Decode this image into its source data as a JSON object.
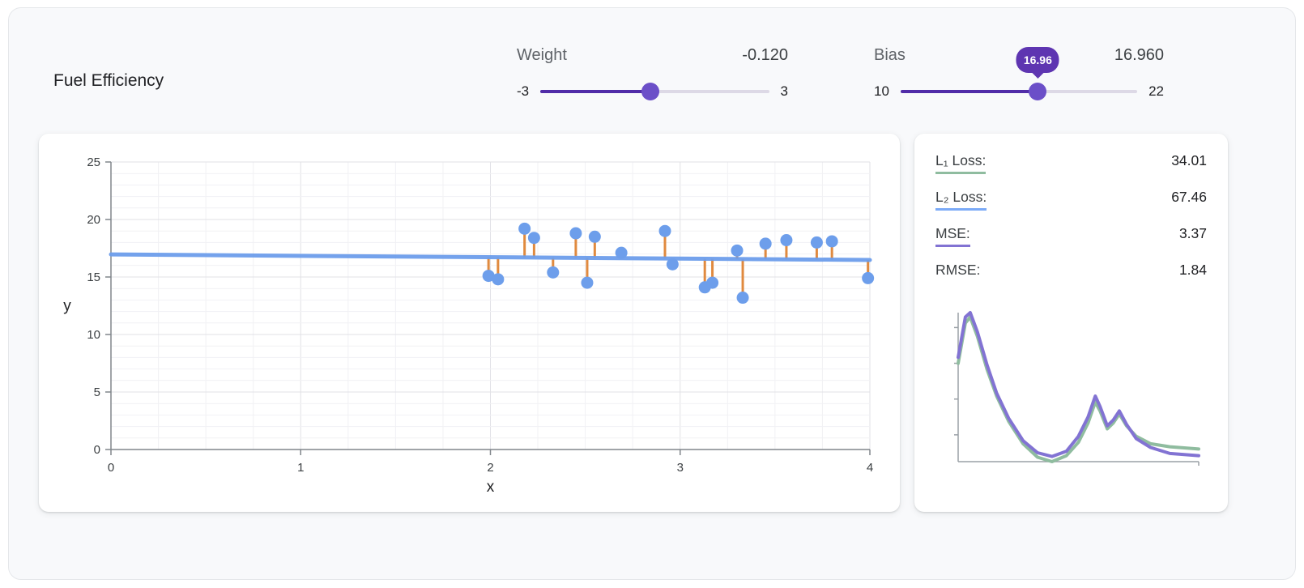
{
  "page": {
    "title": "Fuel Efficiency"
  },
  "controls": {
    "weight": {
      "label": "Weight",
      "value": -0.12,
      "value_display": "-0.120",
      "min": -3,
      "max": 3
    },
    "bias": {
      "label": "Bias",
      "value": 16.96,
      "value_display": "16.960",
      "min": 10,
      "max": 22,
      "tooltip": "16.96"
    }
  },
  "metrics": {
    "rows": [
      {
        "label": "L₁ Loss:",
        "value": "34.01",
        "underline_color": "#8fbc9f"
      },
      {
        "label": "L₂ Loss:",
        "value": "67.46",
        "underline_color": "#7baaf7"
      },
      {
        "label": "MSE:",
        "value": "3.37",
        "underline_color": "#8273d3"
      },
      {
        "label": "RMSE:",
        "value": "1.84",
        "underline_color": ""
      }
    ]
  },
  "colors": {
    "slider_fill": "#512da8",
    "slider_thumb": "#6b4fc8",
    "slider_track": "#ddd9e6",
    "tooltip_bg": "#5e35b1",
    "point": "#6d9eeb",
    "model_line": "#6d9eeb",
    "residual": "#e08a3f",
    "l1_curve": "#8fbc9f",
    "mse_curve": "#8273d3"
  },
  "chart_data": [
    {
      "type": "scatter",
      "title": "",
      "xlabel": "x",
      "ylabel": "y",
      "xlim": [
        0,
        4
      ],
      "ylim": [
        0,
        25
      ],
      "xticks": [
        0,
        1,
        2,
        3,
        4
      ],
      "yticks": [
        0,
        5,
        10,
        15,
        20,
        25
      ],
      "grid": true,
      "points": [
        [
          1.99,
          15.1
        ],
        [
          2.04,
          14.8
        ],
        [
          2.18,
          19.2
        ],
        [
          2.23,
          18.4
        ],
        [
          2.33,
          15.4
        ],
        [
          2.45,
          18.8
        ],
        [
          2.51,
          14.5
        ],
        [
          2.55,
          18.5
        ],
        [
          2.69,
          17.1
        ],
        [
          2.92,
          19.0
        ],
        [
          2.96,
          16.1
        ],
        [
          3.13,
          14.1
        ],
        [
          3.17,
          14.5
        ],
        [
          3.3,
          17.3
        ],
        [
          3.33,
          13.2
        ],
        [
          3.45,
          17.9
        ],
        [
          3.56,
          18.2
        ],
        [
          3.72,
          18.0
        ],
        [
          3.8,
          18.1
        ],
        [
          3.99,
          14.9
        ]
      ],
      "model_line": {
        "weight": -0.12,
        "bias": 16.96
      },
      "residuals": true
    },
    {
      "type": "line",
      "title": "loss-over-steps",
      "xlim": [
        0,
        1
      ],
      "ylim": [
        0,
        1
      ],
      "legend_position": "none",
      "series": [
        {
          "name": "L1 Loss",
          "color_key": "l1_curve",
          "points": [
            [
              0,
              0.66
            ],
            [
              0.03,
              0.93
            ],
            [
              0.05,
              0.97
            ],
            [
              0.08,
              0.84
            ],
            [
              0.12,
              0.62
            ],
            [
              0.16,
              0.44
            ],
            [
              0.21,
              0.27
            ],
            [
              0.27,
              0.12
            ],
            [
              0.33,
              0.03
            ],
            [
              0.39,
              0.0
            ],
            [
              0.45,
              0.04
            ],
            [
              0.5,
              0.13
            ],
            [
              0.54,
              0.26
            ],
            [
              0.57,
              0.4
            ],
            [
              0.59,
              0.34
            ],
            [
              0.62,
              0.22
            ],
            [
              0.645,
              0.26
            ],
            [
              0.67,
              0.32
            ],
            [
              0.7,
              0.24
            ],
            [
              0.74,
              0.17
            ],
            [
              0.8,
              0.12
            ],
            [
              0.88,
              0.1
            ],
            [
              1.0,
              0.085
            ]
          ]
        },
        {
          "name": "MSE",
          "color_key": "mse_curve",
          "points": [
            [
              0,
              0.7
            ],
            [
              0.03,
              0.97
            ],
            [
              0.05,
              1.0
            ],
            [
              0.08,
              0.87
            ],
            [
              0.12,
              0.65
            ],
            [
              0.16,
              0.46
            ],
            [
              0.21,
              0.29
            ],
            [
              0.27,
              0.14
            ],
            [
              0.33,
              0.06
            ],
            [
              0.39,
              0.035
            ],
            [
              0.45,
              0.07
            ],
            [
              0.5,
              0.17
            ],
            [
              0.54,
              0.3
            ],
            [
              0.57,
              0.44
            ],
            [
              0.59,
              0.37
            ],
            [
              0.62,
              0.24
            ],
            [
              0.645,
              0.28
            ],
            [
              0.67,
              0.34
            ],
            [
              0.7,
              0.25
            ],
            [
              0.74,
              0.155
            ],
            [
              0.8,
              0.095
            ],
            [
              0.88,
              0.055
            ],
            [
              1.0,
              0.04
            ]
          ]
        }
      ]
    }
  ]
}
